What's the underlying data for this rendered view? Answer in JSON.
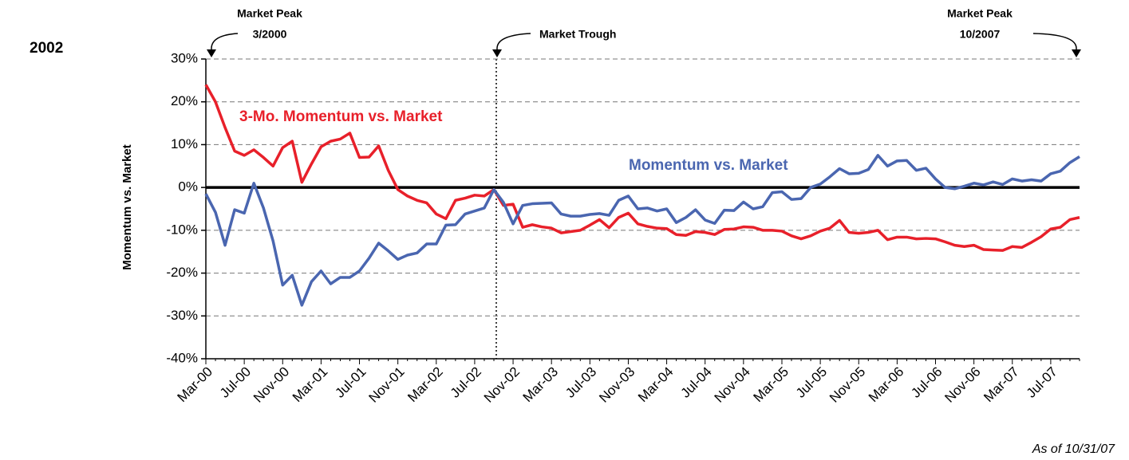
{
  "chart_data": {
    "type": "line",
    "panel_label": "2002",
    "y_label": "Momentum vs. Market",
    "annotations": [
      "Market Peak",
      "3/2000",
      "Market Trough",
      "Market Peak",
      "10/2007"
    ],
    "note": "As of 10/31/07",
    "categories": [
      "Mar-00",
      null,
      null,
      null,
      "Jul-00",
      null,
      null,
      null,
      "Nov-00",
      null,
      null,
      null,
      "Mar-01",
      null,
      null,
      null,
      "Jul-01",
      null,
      null,
      null,
      "Nov-01",
      null,
      null,
      null,
      "Mar-02",
      null,
      null,
      null,
      "Jul-02",
      null,
      null,
      null,
      "Nov-02",
      null,
      null,
      null,
      "Mar-03",
      null,
      null,
      null,
      "Jul-03",
      null,
      null,
      null,
      "Nov-03",
      null,
      null,
      null,
      "Mar-04",
      null,
      null,
      null,
      "Jul-04",
      null,
      null,
      null,
      "Nov-04",
      null,
      null,
      null,
      "Mar-05",
      null,
      null,
      null,
      "Jul-05",
      null,
      null,
      null,
      "Nov-05",
      null,
      null,
      null,
      "Mar-06",
      null,
      null,
      null,
      "Jul-06",
      null,
      null,
      null,
      "Nov-06",
      null,
      null,
      null,
      "Mar-07",
      null,
      null,
      null,
      "Jul-07",
      null,
      null,
      null
    ],
    "series": [
      {
        "name": "3-Mo. Momentum vs. Market",
        "color": "#e8202a",
        "values": [
          24,
          20,
          14,
          8.5,
          7.5,
          8.8,
          7,
          5,
          9.3,
          10.8,
          1.2,
          5.5,
          9.5,
          10.8,
          11.3,
          12.7,
          7,
          7.1,
          9.7,
          4,
          -0.5,
          -2,
          -3,
          -3.6,
          -6.2,
          -7.3,
          -3,
          -2.5,
          -1.8,
          -2,
          -0.5,
          -4.2,
          -3.9,
          -9.3,
          -8.7,
          -9.2,
          -9.5,
          -10.6,
          -10.3,
          -10,
          -8.8,
          -7.5,
          -9.4,
          -7,
          -6,
          -8.5,
          -9.1,
          -9.5,
          -9.6,
          -11,
          -11.2,
          -10.3,
          -10.5,
          -11,
          -9.8,
          -9.7,
          -9.2,
          -9.3,
          -10,
          -10,
          -10.2,
          -11.3,
          -12,
          -11.3,
          -10.2,
          -9.5,
          -7.7,
          -10.5,
          -10.7,
          -10.5,
          -10,
          -12.2,
          -11.6,
          -11.6,
          -12,
          -11.9,
          -12,
          -12.7,
          -13.5,
          -13.8,
          -13.5,
          -14.5,
          -14.6,
          -14.7,
          -13.8,
          -14,
          -12.8,
          -11.5,
          -9.7,
          -9.3,
          -7.5,
          -7
        ]
      },
      {
        "name": "Momentum vs. Market",
        "color": "#4a66b0",
        "values": [
          -1.5,
          -5.8,
          -13.5,
          -5.2,
          -6,
          1,
          -4.8,
          -12.5,
          -22.8,
          -20.5,
          -27.5,
          -22,
          -19.5,
          -22.5,
          -21,
          -21,
          -19.5,
          -16.5,
          -13,
          -14.8,
          -16.8,
          -15.8,
          -15.3,
          -13.2,
          -13.2,
          -8.8,
          -8.7,
          -6.2,
          -5.5,
          -4.8,
          -0.5,
          -3.5,
          -8.5,
          -4.2,
          -3.8,
          -3.7,
          -3.6,
          -6.2,
          -6.7,
          -6.7,
          -6.3,
          -6.1,
          -6.5,
          -3,
          -2,
          -5,
          -4.8,
          -5.5,
          -5,
          -8.2,
          -7,
          -5.2,
          -7.6,
          -8.4,
          -5.3,
          -5.4,
          -3.4,
          -5,
          -4.5,
          -1.2,
          -1,
          -2.8,
          -2.6,
          0,
          0.8,
          2.5,
          4.4,
          3.2,
          3.3,
          4.2,
          7.5,
          5,
          6.2,
          6.3,
          4,
          4.5,
          2,
          0,
          -0.3,
          0.3,
          1,
          0.6,
          1.3,
          0.7,
          2,
          1.5,
          1.8,
          1.5,
          3.2,
          3.8,
          5.8,
          7.2
        ]
      }
    ],
    "ylim": [
      -40,
      30
    ],
    "yticks": [
      {
        "value": -40,
        "label": "-40%"
      },
      {
        "value": -30,
        "label": "-30%"
      },
      {
        "value": -20,
        "label": "-20%"
      },
      {
        "value": -10,
        "label": "-10%"
      },
      {
        "value": 0,
        "label": "0%"
      },
      {
        "value": 10,
        "label": "10%"
      },
      {
        "value": 20,
        "label": "20%"
      },
      {
        "value": 30,
        "label": "30%"
      }
    ],
    "grid": true
  }
}
